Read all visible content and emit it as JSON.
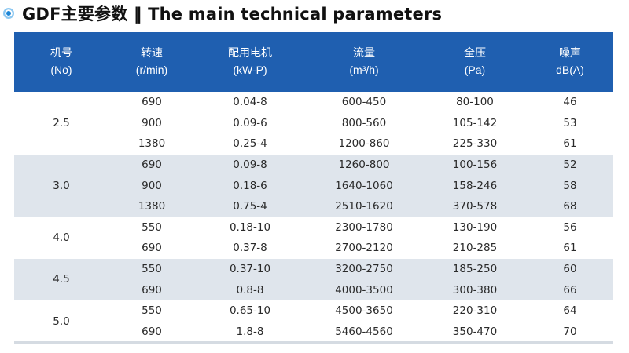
{
  "title": "GDF主要参数 ‖ The main technical parameters",
  "colors": {
    "header_bg": "#1f5fb0",
    "shaded_row": "#dfe5ec",
    "bullet": "#1d86d6"
  },
  "headers": [
    {
      "zh": "机号",
      "unit": "(No)"
    },
    {
      "zh": "转速",
      "unit": "(r/min)"
    },
    {
      "zh": "配用电机",
      "unit": "(kW-P)"
    },
    {
      "zh": "流量",
      "unit": "(m³/h)"
    },
    {
      "zh": "全压",
      "unit": "(Pa)"
    },
    {
      "zh": "噪声",
      "unit": "dB(A)"
    }
  ],
  "groups": [
    {
      "no": "2.5",
      "rows": [
        {
          "speed": "690",
          "motor": "0.04-8",
          "flow": "600-450",
          "pressure": "80-100",
          "noise": "46"
        },
        {
          "speed": "900",
          "motor": "0.09-6",
          "flow": "800-560",
          "pressure": "105-142",
          "noise": "53"
        },
        {
          "speed": "1380",
          "motor": "0.25-4",
          "flow": "1200-860",
          "pressure": "225-330",
          "noise": "61"
        }
      ]
    },
    {
      "no": "3.0",
      "rows": [
        {
          "speed": "690",
          "motor": "0.09-8",
          "flow": "1260-800",
          "pressure": "100-156",
          "noise": "52"
        },
        {
          "speed": "900",
          "motor": "0.18-6",
          "flow": "1640-1060",
          "pressure": "158-246",
          "noise": "58"
        },
        {
          "speed": "1380",
          "motor": "0.75-4",
          "flow": "2510-1620",
          "pressure": "370-578",
          "noise": "68"
        }
      ]
    },
    {
      "no": "4.0",
      "rows": [
        {
          "speed": "550",
          "motor": "0.18-10",
          "flow": "2300-1780",
          "pressure": "130-190",
          "noise": "56"
        },
        {
          "speed": "690",
          "motor": "0.37-8",
          "flow": "2700-2120",
          "pressure": "210-285",
          "noise": "61"
        }
      ]
    },
    {
      "no": "4.5",
      "rows": [
        {
          "speed": "550",
          "motor": "0.37-10",
          "flow": "3200-2750",
          "pressure": "185-250",
          "noise": "60"
        },
        {
          "speed": "690",
          "motor": "0.8-8",
          "flow": "4000-3500",
          "pressure": "300-380",
          "noise": "66"
        }
      ]
    },
    {
      "no": "5.0",
      "rows": [
        {
          "speed": "550",
          "motor": "0.65-10",
          "flow": "4500-3650",
          "pressure": "220-310",
          "noise": "64"
        },
        {
          "speed": "690",
          "motor": "1.8-8",
          "flow": "5460-4560",
          "pressure": "350-470",
          "noise": "70"
        }
      ]
    }
  ]
}
